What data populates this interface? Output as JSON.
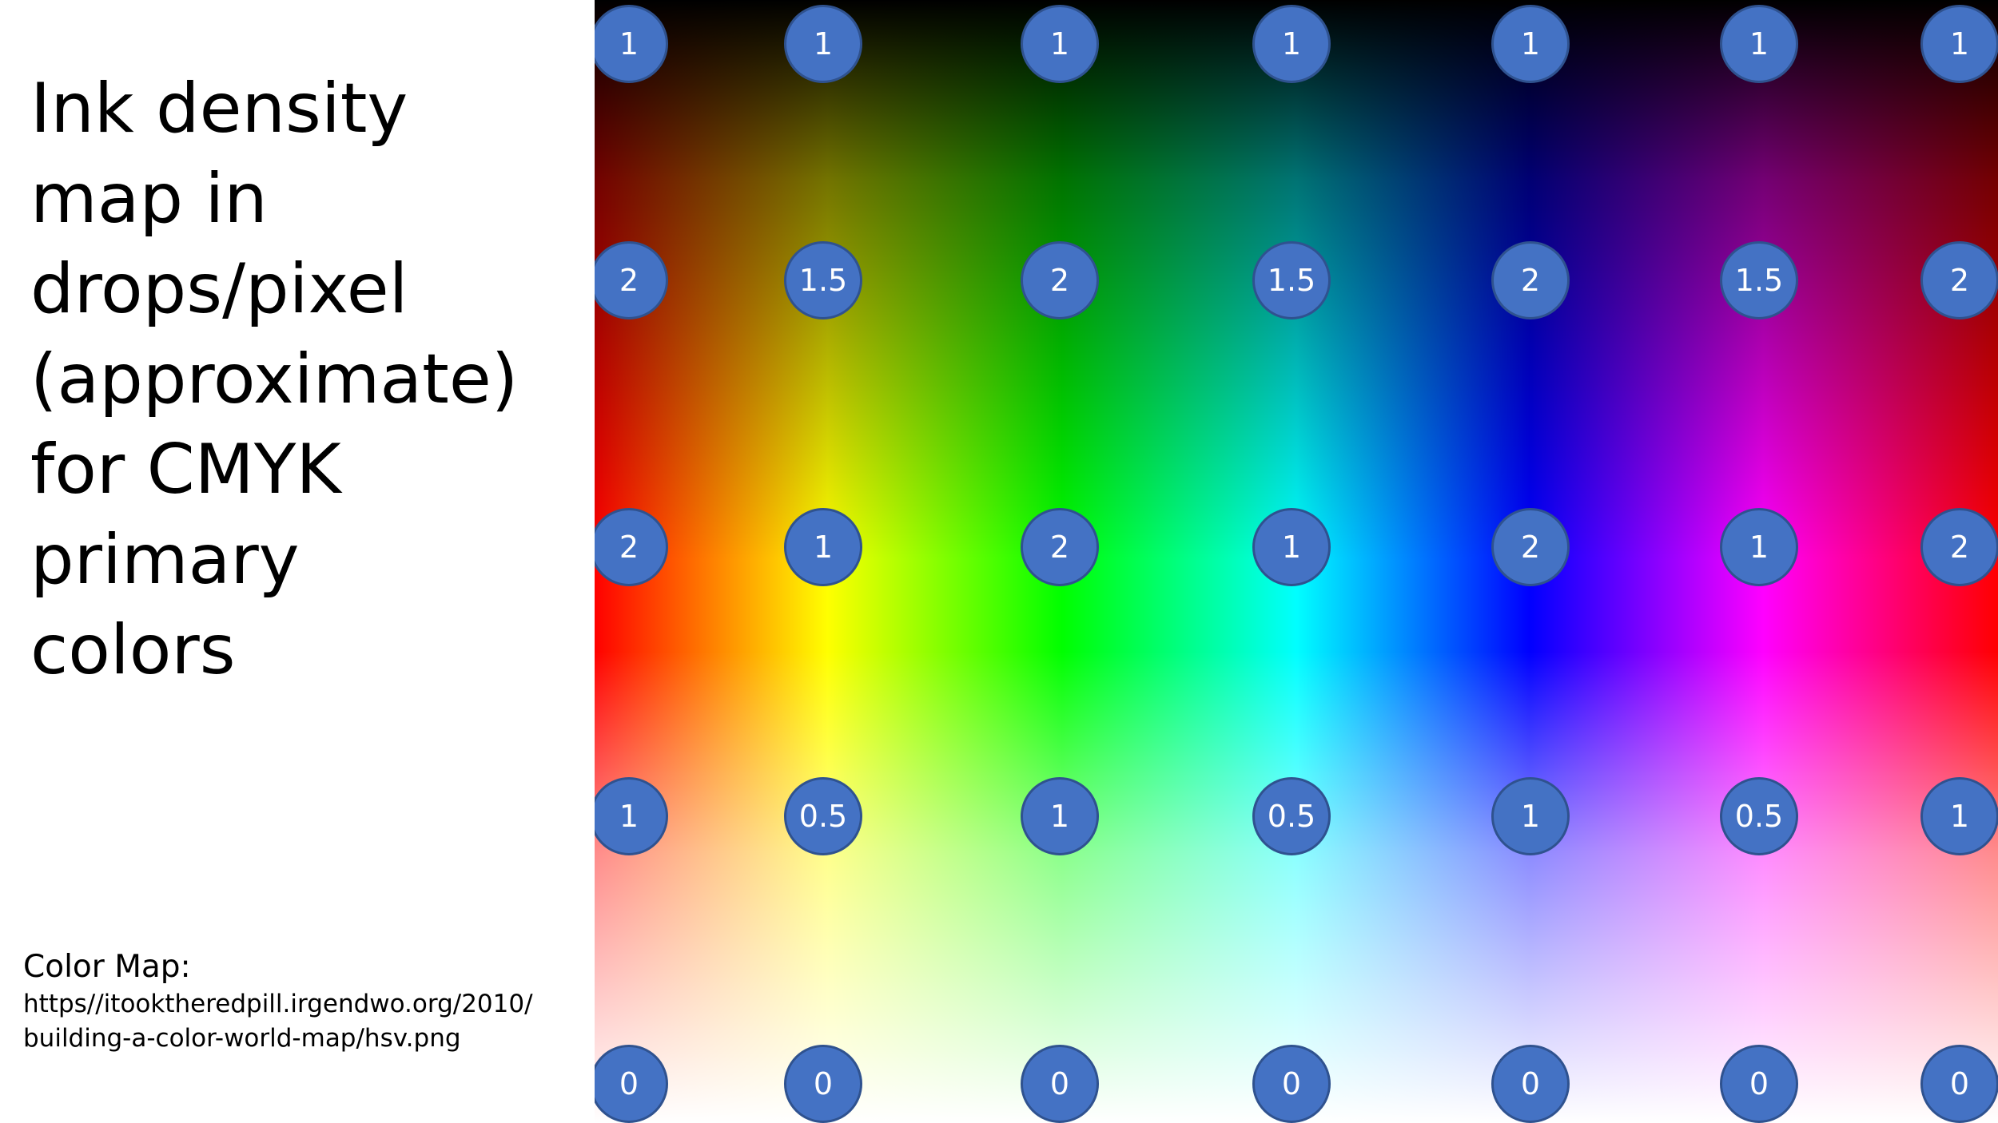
{
  "title_lines": [
    "Ink density",
    "map in",
    "drops/pixel",
    "(approximate)",
    "for CMYK",
    "primary",
    "colors"
  ],
  "source": {
    "label": "Color Map:",
    "url_lines": [
      "https//itooktheredpill.irgendwo.org/2010/",
      "building-a-color-world-map/hsv.png"
    ]
  },
  "ink_density_grid": [
    [
      "1",
      "1",
      "1",
      "1",
      "1",
      "1",
      "1"
    ],
    [
      "2",
      "1.5",
      "2",
      "1.5",
      "2",
      "1.5",
      "2"
    ],
    [
      "2",
      "1",
      "2",
      "1",
      "2",
      "1",
      "2"
    ],
    [
      "1",
      "0.5",
      "1",
      "0.5",
      "1",
      "0.5",
      "1"
    ],
    [
      "0",
      "0",
      "0",
      "0",
      "0",
      "0",
      "0"
    ]
  ],
  "colors": {
    "marker_fill": "#4472c4",
    "marker_border": "#2f528f",
    "marker_text": "#ffffff"
  }
}
